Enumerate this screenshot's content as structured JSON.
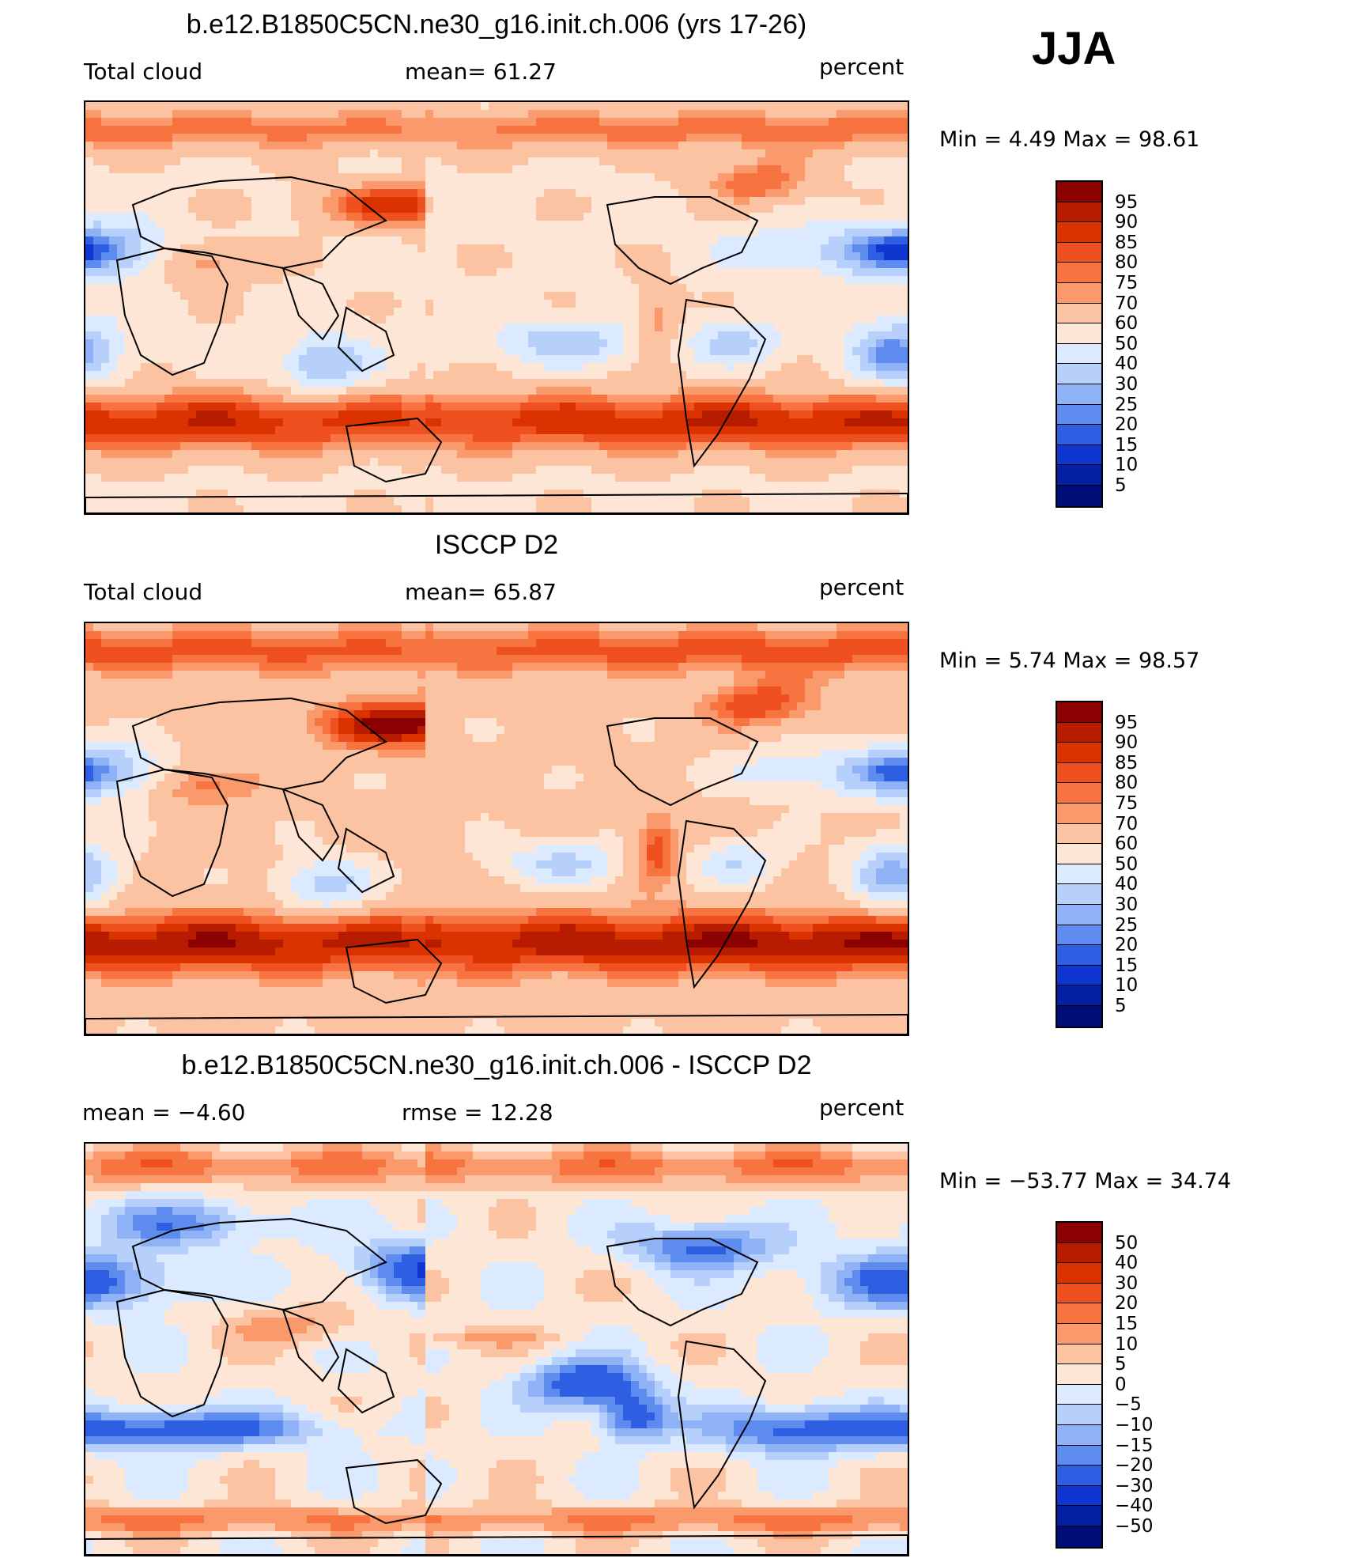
{
  "season": "JJA",
  "units": "percent",
  "panels": [
    {
      "title": "b.e12.B1850C5CN.ne30_g16.init.ch.006 (yrs 17-26)",
      "left_label": "Total cloud",
      "center_label": "mean=   61.27",
      "right_label": "percent",
      "minmax": "Min =    4.49 Max =   98.61",
      "colorbar_ticks": [
        "95",
        "90",
        "85",
        "80",
        "75",
        "70",
        "60",
        "50",
        "40",
        "30",
        "25",
        "20",
        "15",
        "10",
        "5"
      ]
    },
    {
      "title": "ISCCP D2",
      "left_label": "Total cloud",
      "center_label": "mean=   65.87",
      "right_label": "percent",
      "minmax": "Min =    5.74 Max =   98.57",
      "colorbar_ticks": [
        "95",
        "90",
        "85",
        "80",
        "75",
        "70",
        "60",
        "50",
        "40",
        "30",
        "25",
        "20",
        "15",
        "10",
        "5"
      ]
    },
    {
      "title": "b.e12.B1850C5CN.ne30_g16.init.ch.006 - ISCCP D2",
      "left_label": "mean =   −4.60",
      "center_label": "rmse =   12.28",
      "right_label": "percent",
      "minmax": "Min = −53.77 Max =   34.74",
      "colorbar_ticks": [
        "50",
        "40",
        "30",
        "20",
        "15",
        "10",
        "5",
        "0",
        "−5",
        "−10",
        "−15",
        "−20",
        "−30",
        "−40",
        "−50"
      ]
    }
  ],
  "colors": {
    "scale": [
      "#8b0000",
      "#b81c00",
      "#db3300",
      "#ef5020",
      "#f7733f",
      "#fa9a6c",
      "#fcc3a3",
      "#fde6d6",
      "#dceaff",
      "#b6d0fb",
      "#8fb2f6",
      "#5d8bee",
      "#2e5fe2",
      "#0f36d0",
      "#0620a4",
      "#000c78"
    ]
  }
}
